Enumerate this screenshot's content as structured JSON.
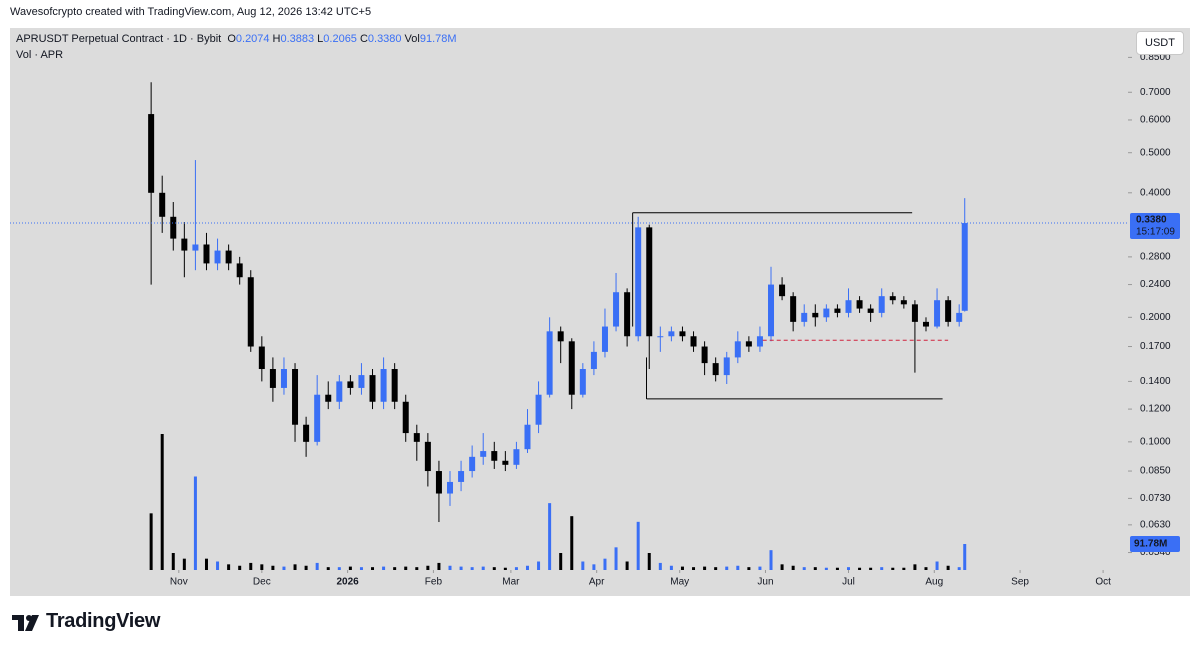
{
  "header": {
    "credit": "Wavesofcrypto created with TradingView.com, Aug 12, 2026 13:42 UTC+5"
  },
  "chart_data": {
    "type": "candlestick",
    "symbol": "APRUSDT Perpetual Contract · 1D · Bybit",
    "legend_fields": [
      {
        "label": "O",
        "value": "0.2074"
      },
      {
        "label": "H",
        "value": "0.3883"
      },
      {
        "label": "L",
        "value": "0.2065"
      },
      {
        "label": "C",
        "value": "0.3380"
      },
      {
        "label": "Vol",
        "value": "91.78M"
      }
    ],
    "indicator": "Vol · APR",
    "currency": "USDT",
    "price_label": "0.3380",
    "countdown": "15:17:09",
    "volume_label": "91.78M",
    "up_color": "#3a6ff5",
    "down_color": "#000000",
    "log_scale": true,
    "grid": false,
    "ylim": [
      0.049,
      0.99
    ],
    "yticks": [
      {
        "value": 0.85,
        "label": "0.8500"
      },
      {
        "value": 0.7,
        "label": "0.7000"
      },
      {
        "value": 0.6,
        "label": "0.6000"
      },
      {
        "value": 0.5,
        "label": "0.5000"
      },
      {
        "value": 0.4,
        "label": "0.4000"
      },
      {
        "value": 0.28,
        "label": "0.2800"
      },
      {
        "value": 0.24,
        "label": "0.2400"
      },
      {
        "value": 0.2,
        "label": "0.2000"
      },
      {
        "value": 0.17,
        "label": "0.1700"
      },
      {
        "value": 0.14,
        "label": "0.1400"
      },
      {
        "value": 0.12,
        "label": "0.1200"
      },
      {
        "value": 0.1,
        "label": "0.1000"
      },
      {
        "value": 0.085,
        "label": "0.0850"
      },
      {
        "value": 0.073,
        "label": "0.0730"
      },
      {
        "value": 0.063,
        "label": "0.0630"
      },
      {
        "value": 0.054,
        "label": "0.0540"
      }
    ],
    "xlim": [
      "2025-09-01",
      "2026-10-10"
    ],
    "xticks": [
      {
        "value": "2025-11-01",
        "label": "Nov"
      },
      {
        "value": "2025-12-01",
        "label": "Dec"
      },
      {
        "value": "2026-01-01",
        "label": "2026"
      },
      {
        "value": "2026-02-01",
        "label": "Feb"
      },
      {
        "value": "2026-03-01",
        "label": "Mar"
      },
      {
        "value": "2026-04-01",
        "label": "Apr"
      },
      {
        "value": "2026-05-01",
        "label": "May"
      },
      {
        "value": "2026-06-01",
        "label": "Jun"
      },
      {
        "value": "2026-07-01",
        "label": "Jul"
      },
      {
        "value": "2026-08-01",
        "label": "Aug"
      },
      {
        "value": "2026-09-01",
        "label": "Sep"
      },
      {
        "value": "2026-10-01",
        "label": "Oct"
      }
    ],
    "x": [
      "2025-10-22",
      "2025-10-26",
      "2025-10-30",
      "2025-11-03",
      "2025-11-07",
      "2025-11-11",
      "2025-11-15",
      "2025-11-19",
      "2025-11-23",
      "2025-11-27",
      "2025-12-01",
      "2025-12-05",
      "2025-12-09",
      "2025-12-13",
      "2025-12-17",
      "2025-12-21",
      "2025-12-25",
      "2025-12-29",
      "2026-01-02",
      "2026-01-06",
      "2026-01-10",
      "2026-01-14",
      "2026-01-18",
      "2026-01-22",
      "2026-01-26",
      "2026-01-30",
      "2026-02-03",
      "2026-02-07",
      "2026-02-11",
      "2026-02-15",
      "2026-02-19",
      "2026-02-23",
      "2026-02-27",
      "2026-03-03",
      "2026-03-07",
      "2026-03-11",
      "2026-03-15",
      "2026-03-19",
      "2026-03-23",
      "2026-03-27",
      "2026-03-31",
      "2026-04-04",
      "2026-04-08",
      "2026-04-12",
      "2026-04-16",
      "2026-04-20",
      "2026-04-24",
      "2026-04-28",
      "2026-05-02",
      "2026-05-06",
      "2026-05-10",
      "2026-05-14",
      "2026-05-18",
      "2026-05-22",
      "2026-05-26",
      "2026-05-30",
      "2026-06-03",
      "2026-06-07",
      "2026-06-11",
      "2026-06-15",
      "2026-06-19",
      "2026-06-23",
      "2026-06-27",
      "2026-07-01",
      "2026-07-05",
      "2026-07-09",
      "2026-07-13",
      "2026-07-17",
      "2026-07-21",
      "2026-07-25",
      "2026-07-29",
      "2026-08-02",
      "2026-08-06",
      "2026-08-10",
      "2026-08-12"
    ],
    "open": [
      0.62,
      0.4,
      0.35,
      0.31,
      0.29,
      0.3,
      0.27,
      0.29,
      0.27,
      0.25,
      0.17,
      0.15,
      0.135,
      0.15,
      0.11,
      0.1,
      0.13,
      0.125,
      0.14,
      0.135,
      0.145,
      0.125,
      0.15,
      0.125,
      0.105,
      0.1,
      0.085,
      0.075,
      0.08,
      0.085,
      0.092,
      0.095,
      0.09,
      0.088,
      0.096,
      0.11,
      0.13,
      0.185,
      0.175,
      0.13,
      0.15,
      0.165,
      0.19,
      0.23,
      0.18,
      0.33,
      0.18,
      0.18,
      0.185,
      0.18,
      0.17,
      0.155,
      0.145,
      0.16,
      0.175,
      0.17,
      0.18,
      0.24,
      0.225,
      0.195,
      0.205,
      0.2,
      0.21,
      0.205,
      0.22,
      0.21,
      0.205,
      0.225,
      0.22,
      0.215,
      0.195,
      0.19,
      0.22,
      0.195,
      0.2074
    ],
    "high": [
      0.74,
      0.44,
      0.38,
      0.34,
      0.48,
      0.32,
      0.31,
      0.3,
      0.28,
      0.26,
      0.18,
      0.16,
      0.16,
      0.155,
      0.115,
      0.145,
      0.14,
      0.145,
      0.145,
      0.155,
      0.15,
      0.16,
      0.155,
      0.13,
      0.11,
      0.105,
      0.09,
      0.085,
      0.09,
      0.098,
      0.105,
      0.1,
      0.095,
      0.1,
      0.12,
      0.14,
      0.2,
      0.19,
      0.178,
      0.155,
      0.175,
      0.21,
      0.256,
      0.235,
      0.35,
      0.335,
      0.19,
      0.19,
      0.19,
      0.185,
      0.175,
      0.16,
      0.165,
      0.185,
      0.18,
      0.19,
      0.265,
      0.25,
      0.23,
      0.215,
      0.215,
      0.215,
      0.215,
      0.235,
      0.225,
      0.215,
      0.235,
      0.23,
      0.225,
      0.22,
      0.2,
      0.235,
      0.225,
      0.215,
      0.3883
    ],
    "low": [
      0.24,
      0.32,
      0.29,
      0.25,
      0.26,
      0.26,
      0.26,
      0.26,
      0.24,
      0.165,
      0.14,
      0.125,
      0.13,
      0.1,
      0.092,
      0.098,
      0.12,
      0.12,
      0.13,
      0.13,
      0.12,
      0.12,
      0.12,
      0.1,
      0.09,
      0.078,
      0.064,
      0.07,
      0.076,
      0.082,
      0.088,
      0.086,
      0.085,
      0.086,
      0.094,
      0.105,
      0.128,
      0.155,
      0.12,
      0.128,
      0.145,
      0.16,
      0.185,
      0.17,
      0.175,
      0.15,
      0.165,
      0.175,
      0.175,
      0.165,
      0.145,
      0.14,
      0.138,
      0.155,
      0.165,
      0.165,
      0.175,
      0.22,
      0.185,
      0.19,
      0.19,
      0.195,
      0.2,
      0.2,
      0.205,
      0.195,
      0.2,
      0.215,
      0.21,
      0.147,
      0.185,
      0.188,
      0.19,
      0.19,
      0.2065
    ],
    "close": [
      0.4,
      0.35,
      0.31,
      0.29,
      0.3,
      0.27,
      0.29,
      0.27,
      0.25,
      0.17,
      0.15,
      0.135,
      0.15,
      0.11,
      0.1,
      0.13,
      0.125,
      0.14,
      0.135,
      0.145,
      0.125,
      0.15,
      0.125,
      0.105,
      0.1,
      0.085,
      0.075,
      0.08,
      0.085,
      0.092,
      0.095,
      0.09,
      0.088,
      0.096,
      0.11,
      0.13,
      0.185,
      0.175,
      0.13,
      0.15,
      0.165,
      0.19,
      0.23,
      0.18,
      0.33,
      0.18,
      0.18,
      0.185,
      0.18,
      0.17,
      0.155,
      0.145,
      0.16,
      0.175,
      0.17,
      0.18,
      0.24,
      0.225,
      0.195,
      0.205,
      0.2,
      0.21,
      0.205,
      0.22,
      0.21,
      0.205,
      0.225,
      0.22,
      0.215,
      0.195,
      0.19,
      0.22,
      0.195,
      0.205,
      0.338
    ],
    "volume": [
      200,
      480,
      60,
      40,
      330,
      40,
      30,
      20,
      15,
      25,
      20,
      15,
      12,
      20,
      15,
      25,
      10,
      10,
      12,
      10,
      10,
      12,
      10,
      12,
      10,
      15,
      25,
      15,
      12,
      10,
      12,
      10,
      8,
      10,
      15,
      30,
      236,
      60,
      190,
      30,
      20,
      40,
      80,
      30,
      170,
      60,
      25,
      15,
      12,
      10,
      12,
      10,
      12,
      15,
      10,
      12,
      70,
      20,
      15,
      10,
      10,
      8,
      8,
      10,
      8,
      8,
      10,
      8,
      8,
      20,
      10,
      30,
      15,
      10,
      91.78
    ],
    "drawings": [
      {
        "x": [
          "2026-04-14",
          "2026-07-24"
        ],
        "y": [
          0.358,
          0.358
        ],
        "color": "#000000",
        "dashed": false
      },
      {
        "x": [
          "2026-04-14",
          "2026-04-14"
        ],
        "y": [
          0.358,
          0.19
        ],
        "color": "#000000",
        "dashed": false
      },
      {
        "x": [
          "2026-04-19",
          "2026-04-19"
        ],
        "y": [
          0.16,
          0.127
        ],
        "color": "#000000",
        "dashed": false
      },
      {
        "x": [
          "2026-04-19",
          "2026-08-04"
        ],
        "y": [
          0.127,
          0.127
        ],
        "color": "#000000",
        "dashed": false
      },
      {
        "x": [
          "2026-05-31",
          "2026-08-06"
        ],
        "y": [
          0.176,
          0.176
        ],
        "color": "#d0213d",
        "dashed": true
      }
    ]
  },
  "footer": {
    "brand": "TradingView"
  }
}
